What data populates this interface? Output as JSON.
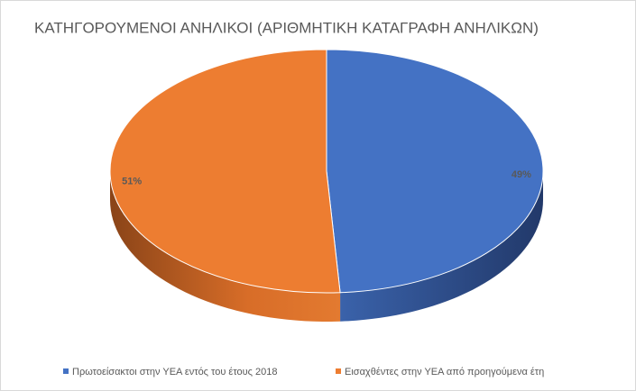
{
  "chart_data": {
    "type": "pie3d",
    "title": "ΚΑΤΗΓΟΡΟΥΜΕΝΟΙ ΑΝΗΛΙΚΟΙ (ΑΡΙΘΜΗΤΙΚΗ ΚΑΤΑΓΡΑΦΗ ΑΝΗΛΙΚΩΝ)",
    "categories": [
      "Πρωτοείσακτοι στην ΥΕΑ εντός του έτους 2018",
      "Εισαχθέντες στην ΥΕΑ από προηγούμενα έτη"
    ],
    "values": [
      49,
      51
    ],
    "value_labels": [
      "49%",
      "51%"
    ],
    "colors": [
      "#4472c4",
      "#ed7d31"
    ],
    "legend": "bottom"
  }
}
